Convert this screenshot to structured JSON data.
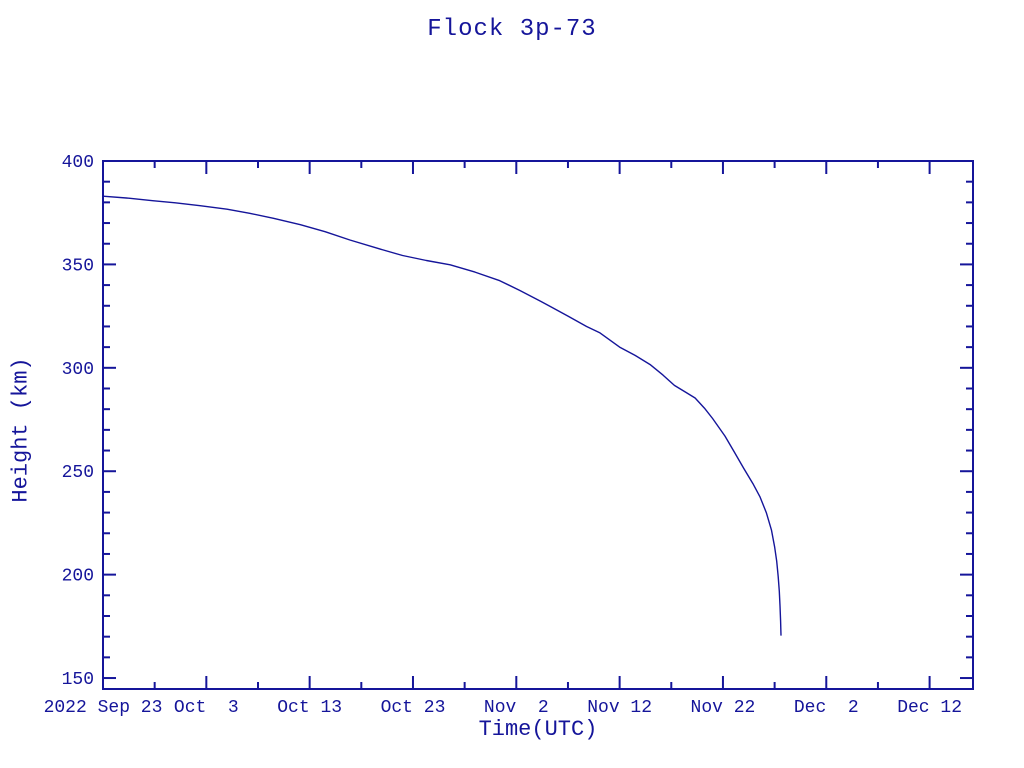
{
  "page": {
    "background_color": "#ffffff",
    "ink_color": "#15159a"
  },
  "chart_data": {
    "type": "line",
    "title": "Flock 3p-73",
    "xlabel": "Time(UTC)",
    "ylabel": "Height (km)",
    "legend": "none",
    "grid": false,
    "frame_style": "box-with-inward-ticks-mirrored-on-all-sides",
    "x_axis": {
      "epoch": "2022 Sep 23",
      "units": "days since 2022 Sep 23",
      "domain_days": [
        0,
        84.2
      ],
      "major_ticks": [
        {
          "day": 0,
          "label": "2022 Sep 23"
        },
        {
          "day": 10,
          "label": "Oct  3"
        },
        {
          "day": 20,
          "label": "Oct 13"
        },
        {
          "day": 30,
          "label": "Oct 23"
        },
        {
          "day": 40,
          "label": "Nov  2"
        },
        {
          "day": 50,
          "label": "Nov 12"
        },
        {
          "day": 60,
          "label": "Nov 22"
        },
        {
          "day": 70,
          "label": "Dec  2"
        },
        {
          "day": 80,
          "label": "Dec 12"
        }
      ],
      "minor_ticks_days": [
        5,
        15,
        25,
        35,
        45,
        55,
        65,
        75
      ]
    },
    "y_axis": {
      "domain": [
        144.7,
        400
      ],
      "major_ticks": [
        {
          "value": 150,
          "label": "150"
        },
        {
          "value": 200,
          "label": "200"
        },
        {
          "value": 250,
          "label": "250"
        },
        {
          "value": 300,
          "label": "300"
        },
        {
          "value": 350,
          "label": "350"
        },
        {
          "value": 400,
          "label": "400"
        }
      ],
      "minor_ticks": [
        160,
        170,
        180,
        190,
        210,
        220,
        230,
        240,
        260,
        270,
        280,
        290,
        310,
        320,
        330,
        340,
        360,
        370,
        380,
        390
      ]
    },
    "series": [
      {
        "name": "orbital-height",
        "color": "#15159a",
        "points_day_km": [
          [
            0,
            383
          ],
          [
            2.5,
            382
          ],
          [
            4.8,
            380.8
          ],
          [
            7,
            379.8
          ],
          [
            9.4,
            378.4
          ],
          [
            12,
            376.7
          ],
          [
            14.2,
            374.7
          ],
          [
            16.5,
            372.3
          ],
          [
            19.1,
            369.2
          ],
          [
            21.5,
            365.8
          ],
          [
            23.9,
            361.8
          ],
          [
            26.5,
            357.9
          ],
          [
            29,
            354.3
          ],
          [
            31.3,
            351.9
          ],
          [
            33.6,
            349.8
          ],
          [
            36,
            346.3
          ],
          [
            38.4,
            342.1
          ],
          [
            40.3,
            337.5
          ],
          [
            42.3,
            332.3
          ],
          [
            43.2,
            329.9
          ],
          [
            45,
            325
          ],
          [
            46.8,
            320
          ],
          [
            48.1,
            316.9
          ],
          [
            50,
            310
          ],
          [
            51.5,
            306
          ],
          [
            53,
            301.4
          ],
          [
            54.2,
            296.5
          ],
          [
            55.3,
            291.5
          ],
          [
            56.3,
            288.5
          ],
          [
            57.3,
            285.4
          ],
          [
            58.2,
            280.5
          ],
          [
            59,
            275.5
          ],
          [
            60.2,
            267
          ],
          [
            61.1,
            259.3
          ],
          [
            62,
            251.5
          ],
          [
            62.9,
            244
          ],
          [
            63.6,
            237.5
          ],
          [
            64.2,
            230
          ],
          [
            64.7,
            221.5
          ],
          [
            65,
            213.5
          ],
          [
            65.2,
            206.5
          ],
          [
            65.35,
            199
          ],
          [
            65.45,
            192
          ],
          [
            65.52,
            185
          ],
          [
            65.58,
            177.5
          ],
          [
            65.62,
            170.5
          ]
        ]
      }
    ]
  }
}
